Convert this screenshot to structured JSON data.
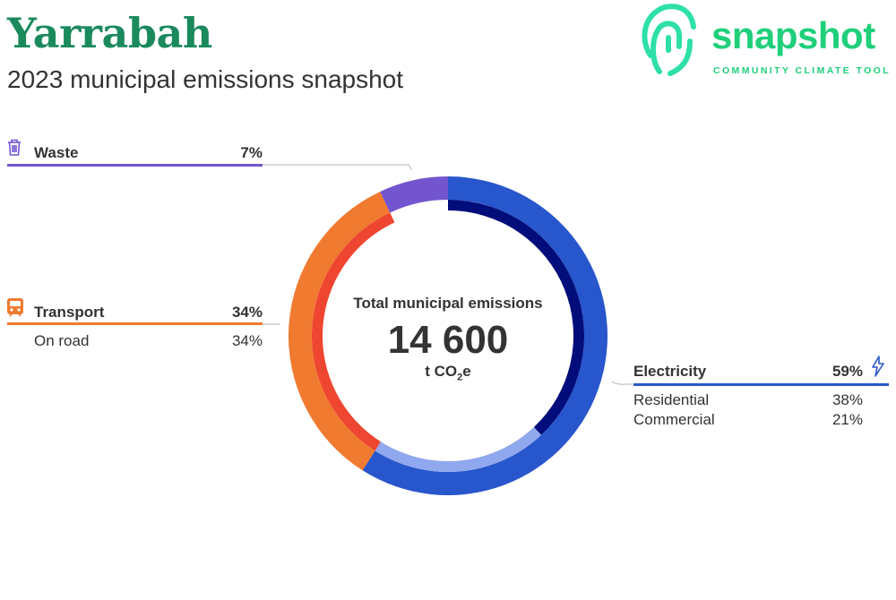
{
  "header": {
    "title": "Yarrabah",
    "subtitle": "2023 municipal emissions snapshot"
  },
  "logo": {
    "wordmark": "snapshot",
    "tagline": "COMMUNITY CLIMATE TOOL",
    "color": "#1fcf7a"
  },
  "center": {
    "label": "Total municipal emissions",
    "value": "14 600",
    "unit_prefix": "t CO",
    "unit_sub": "2",
    "unit_suffix": "e"
  },
  "chart_data": {
    "type": "pie",
    "title": "",
    "total": 14600,
    "categories": [
      {
        "name": "Electricity",
        "pct_label": "59%",
        "value": 59,
        "color": "#2856cc",
        "icon": "lightning-icon",
        "subsectors": [
          {
            "name": "Residential",
            "pct_label": "38%",
            "value": 38,
            "color": "#000d7a"
          },
          {
            "name": "Commercial",
            "pct_label": "21%",
            "value": 21,
            "color": "#8fa8ee"
          }
        ]
      },
      {
        "name": "Transport",
        "pct_label": "34%",
        "value": 34,
        "color": "#f07a30",
        "icon": "train-icon",
        "subsectors": [
          {
            "name": "On road",
            "pct_label": "34%",
            "value": 34,
            "color": "#ee4630"
          }
        ]
      },
      {
        "name": "Waste",
        "pct_label": "7%",
        "value": 7,
        "color": "#7355cf",
        "icon": "trash-icon",
        "subsectors": []
      }
    ]
  }
}
